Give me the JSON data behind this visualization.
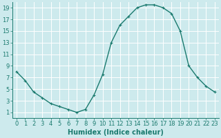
{
  "x": [
    0,
    1,
    2,
    3,
    4,
    5,
    6,
    7,
    8,
    9,
    10,
    11,
    12,
    13,
    14,
    15,
    16,
    17,
    18,
    19,
    20,
    21,
    22,
    23
  ],
  "y": [
    8,
    6.5,
    4.5,
    3.5,
    2.5,
    2,
    1.5,
    1,
    1.5,
    4,
    7.5,
    13,
    16,
    17.5,
    19,
    19.5,
    19.5,
    19,
    18,
    15,
    9,
    7,
    5.5,
    4.5
  ],
  "line_color": "#1a7a6e",
  "marker": "+",
  "marker_size": 3,
  "linewidth": 1.0,
  "bg_color": "#cdeaed",
  "grid_color": "#ffffff",
  "xlabel": "Humidex (Indice chaleur)",
  "xlabel_fontsize": 7,
  "tick_fontsize": 6,
  "xlim": [
    -0.5,
    23.5
  ],
  "ylim": [
    0,
    20
  ],
  "yticks": [
    1,
    3,
    5,
    7,
    9,
    11,
    13,
    15,
    17,
    19
  ],
  "xticks": [
    0,
    1,
    2,
    3,
    4,
    5,
    6,
    7,
    8,
    9,
    10,
    11,
    12,
    13,
    14,
    15,
    16,
    17,
    18,
    19,
    20,
    21,
    22,
    23
  ]
}
